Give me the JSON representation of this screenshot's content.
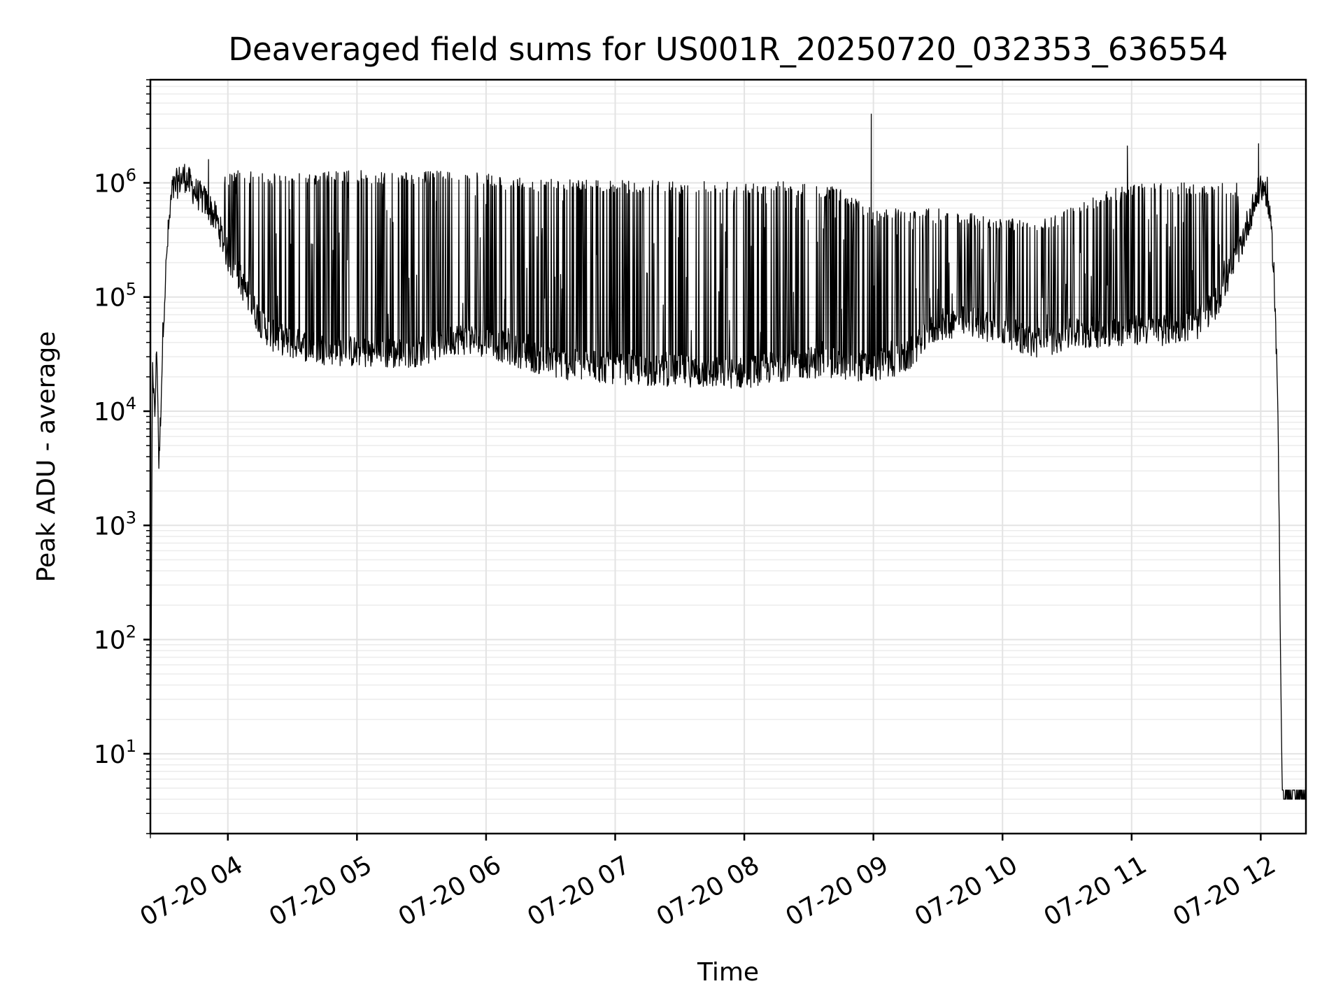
{
  "chart_data": {
    "type": "line",
    "title": "Deaveraged field sums for US001R_20250720_032353_636554",
    "xlabel": "Time",
    "ylabel": "Peak ADU - average",
    "yscale": "log",
    "ylim": [
      2,
      8000000
    ],
    "xlim": [
      "2025-07-20 03:24",
      "2025-07-20 12:21"
    ],
    "grid": true,
    "x_ticks": [
      {
        "t": "2025-07-20 04:00",
        "label": "07-20 04"
      },
      {
        "t": "2025-07-20 05:00",
        "label": "07-20 05"
      },
      {
        "t": "2025-07-20 06:00",
        "label": "07-20 06"
      },
      {
        "t": "2025-07-20 07:00",
        "label": "07-20 07"
      },
      {
        "t": "2025-07-20 08:00",
        "label": "07-20 08"
      },
      {
        "t": "2025-07-20 09:00",
        "label": "07-20 09"
      },
      {
        "t": "2025-07-20 10:00",
        "label": "07-20 10"
      },
      {
        "t": "2025-07-20 11:00",
        "label": "07-20 11"
      },
      {
        "t": "2025-07-20 12:00",
        "label": "07-20 12"
      }
    ],
    "y_ticks": [
      {
        "value": 10,
        "base": "10",
        "exp": "1"
      },
      {
        "value": 100,
        "base": "10",
        "exp": "2"
      },
      {
        "value": 1000,
        "base": "10",
        "exp": "3"
      },
      {
        "value": 10000,
        "base": "10",
        "exp": "4"
      },
      {
        "value": 100000,
        "base": "10",
        "exp": "5"
      },
      {
        "value": 1000000,
        "base": "10",
        "exp": "6"
      }
    ],
    "series": [
      {
        "color": "#000000",
        "x": [
          "2025-07-20 03:24",
          "2025-07-20 03:25",
          "2025-07-20 03:26",
          "2025-07-20 03:27",
          "2025-07-20 03:28",
          "2025-07-20 03:30",
          "2025-07-20 03:32",
          "2025-07-20 03:34",
          "2025-07-20 03:37",
          "2025-07-20 03:40",
          "2025-07-20 03:45",
          "2025-07-20 03:50",
          "2025-07-20 03:55",
          "2025-07-20 04:00",
          "2025-07-20 04:05",
          "2025-07-20 04:10",
          "2025-07-20 04:15",
          "2025-07-20 04:20",
          "2025-07-20 04:30",
          "2025-07-20 04:45",
          "2025-07-20 05:00",
          "2025-07-20 05:15",
          "2025-07-20 05:30",
          "2025-07-20 05:45",
          "2025-07-20 06:00",
          "2025-07-20 06:15",
          "2025-07-20 06:30",
          "2025-07-20 06:45",
          "2025-07-20 07:00",
          "2025-07-20 07:15",
          "2025-07-20 07:30",
          "2025-07-20 07:45",
          "2025-07-20 08:00",
          "2025-07-20 08:15",
          "2025-07-20 08:30",
          "2025-07-20 08:45",
          "2025-07-20 09:00",
          "2025-07-20 09:15",
          "2025-07-20 09:30",
          "2025-07-20 09:45",
          "2025-07-20 10:00",
          "2025-07-20 10:15",
          "2025-07-20 10:30",
          "2025-07-20 10:45",
          "2025-07-20 11:00",
          "2025-07-20 11:15",
          "2025-07-20 11:30",
          "2025-07-20 11:40",
          "2025-07-20 11:50",
          "2025-07-20 11:55",
          "2025-07-20 12:00",
          "2025-07-20 12:03",
          "2025-07-20 12:06",
          "2025-07-20 12:08",
          "2025-07-20 12:10",
          "2025-07-20 12:12",
          "2025-07-20 12:21"
        ],
        "baseline": [
          2,
          30000,
          8000,
          40000,
          3000,
          60000,
          300000,
          800000,
          1000000,
          1100000,
          800000,
          650000,
          450000,
          220000,
          150000,
          90000,
          60000,
          45000,
          38000,
          34000,
          32000,
          31000,
          33000,
          42000,
          40000,
          32000,
          26000,
          24000,
          23000,
          22000,
          22000,
          21000,
          21000,
          24000,
          26000,
          25000,
          24000,
          28000,
          55000,
          60000,
          50000,
          38000,
          45000,
          48000,
          50000,
          50000,
          55000,
          90000,
          250000,
          500000,
          900000,
          800000,
          200000,
          10000,
          4,
          4,
          4
        ],
        "upper": [
          2,
          30000,
          8000,
          50000,
          3000,
          80000,
          500000,
          1100000,
          1250000,
          1300000,
          1500000,
          1200000,
          1100000,
          1200000,
          1300000,
          1250000,
          1250000,
          1250000,
          1250000,
          1250000,
          1300000,
          1250000,
          1250000,
          1300000,
          1200000,
          1100000,
          1100000,
          1100000,
          1050000,
          1050000,
          1050000,
          1050000,
          1050000,
          1050000,
          1000000,
          900000,
          600000,
          600000,
          600000,
          550000,
          500000,
          450000,
          600000,
          800000,
          1000000,
          1000000,
          1000000,
          1000000,
          1000000,
          1100000,
          1000000,
          900000,
          200000,
          10000,
          4,
          4,
          4
        ],
        "spikes": [
          {
            "x": "2025-07-20 08:59",
            "y": 4000000
          },
          {
            "x": "2025-07-20 11:59",
            "y": 2200000
          },
          {
            "x": "2025-07-20 10:58",
            "y": 2100000
          },
          {
            "x": "2025-07-20 03:51",
            "y": 1600000
          }
        ]
      }
    ]
  }
}
